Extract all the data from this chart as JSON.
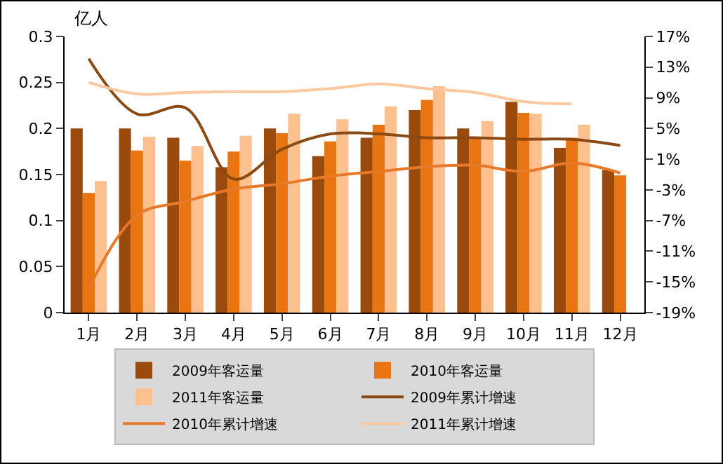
{
  "chart_data": {
    "type": "bar",
    "ylabel": "亿人",
    "categories": [
      "1月",
      "2月",
      "3月",
      "4月",
      "5月",
      "6月",
      "7月",
      "8月",
      "9月",
      "10月",
      "11月",
      "12月"
    ],
    "series": [
      {
        "name": "2009年客运量",
        "color": "#9a4a0c",
        "values": [
          0.2,
          0.2,
          0.19,
          0.158,
          0.2,
          0.17,
          0.19,
          0.22,
          0.2,
          0.229,
          0.179,
          0.155
        ]
      },
      {
        "name": "2010年客运量",
        "color": "#e87511",
        "values": [
          0.13,
          0.176,
          0.165,
          0.175,
          0.195,
          0.186,
          0.204,
          0.231,
          0.19,
          0.217,
          0.19,
          0.149
        ]
      },
      {
        "name": "2011年客运量",
        "color": "#fcc08f",
        "values": [
          0.143,
          0.191,
          0.181,
          0.192,
          0.216,
          0.21,
          0.224,
          0.246,
          0.208,
          0.216,
          0.204,
          null
        ]
      },
      {
        "name": "2009年累计增速",
        "type": "line",
        "axis": "y2",
        "color": "#8b4a14",
        "values": [
          14.1,
          6.9,
          7.7,
          -1.6,
          2.3,
          4.3,
          4.3,
          3.8,
          3.8,
          3.6,
          3.6,
          2.8
        ]
      },
      {
        "name": "2010年累计增速",
        "type": "line",
        "axis": "y2",
        "color": "#e8782a",
        "values": [
          -15.9,
          -6.3,
          -4.5,
          -2.9,
          -2.2,
          -1.2,
          -0.6,
          0,
          0.2,
          -0.6,
          0.5,
          -0.8
        ]
      },
      {
        "name": "2011年累计增速",
        "type": "line",
        "axis": "y2",
        "color": "#fbc8a0",
        "values": [
          11,
          9.5,
          9.7,
          9.8,
          9.8,
          10.2,
          10.8,
          10.2,
          9.7,
          8.5,
          8.2,
          null
        ]
      }
    ],
    "ylim": [
      0,
      0.3
    ],
    "yticks": [
      0,
      0.05,
      0.1,
      0.15,
      0.2,
      0.25,
      0.3
    ],
    "y2lim": [
      -19,
      17
    ],
    "y2ticks": [
      {
        "value": -19,
        "label": "-19%"
      },
      {
        "value": -15,
        "label": "-15%"
      },
      {
        "value": -11,
        "label": "-11%"
      },
      {
        "value": -7,
        "label": "-7%"
      },
      {
        "value": -3,
        "label": "-3%"
      },
      {
        "value": 1,
        "label": "1%"
      },
      {
        "value": 5,
        "label": "5%"
      },
      {
        "value": 9,
        "label": "9%"
      },
      {
        "value": 13,
        "label": "13%"
      },
      {
        "value": 17,
        "label": "17%"
      }
    ],
    "grid": false,
    "legend": "bottom",
    "marker": "none",
    "line_style": "solid"
  }
}
